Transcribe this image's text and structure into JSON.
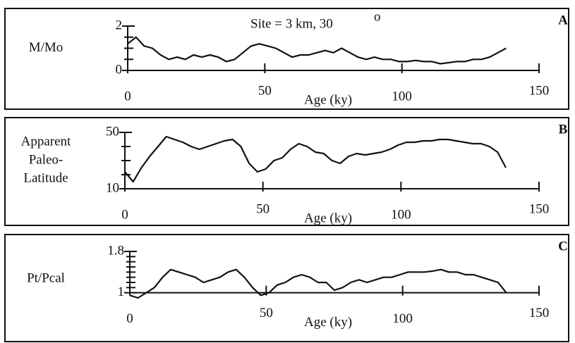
{
  "chart_data": [
    {
      "type": "line",
      "title": "Site = 3 km, 30",
      "title_sup": "o",
      "panel": "A",
      "ylabel": [
        "M/Mo"
      ],
      "xlabel": "Age (ky)",
      "xlim": [
        0,
        150
      ],
      "xticks": [
        0,
        50,
        100,
        150
      ],
      "ylim": [
        0,
        2
      ],
      "yticks": [
        0,
        2
      ],
      "yminor": [
        0.5,
        1,
        1.5
      ],
      "color": "#111111",
      "x": [
        0,
        3,
        6,
        9,
        12,
        15,
        18,
        21,
        24,
        27,
        30,
        33,
        36,
        39,
        42,
        45,
        48,
        51,
        54,
        57,
        60,
        63,
        66,
        69,
        72,
        75,
        78,
        81,
        84,
        87,
        90,
        93,
        96,
        99,
        102,
        105,
        108,
        111,
        114,
        117,
        120,
        123,
        126,
        129,
        132,
        135,
        138
      ],
      "values": [
        1.2,
        1.5,
        1.1,
        1.0,
        0.7,
        0.5,
        0.6,
        0.5,
        0.7,
        0.6,
        0.7,
        0.6,
        0.4,
        0.5,
        0.8,
        1.1,
        1.2,
        1.1,
        1.0,
        0.8,
        0.6,
        0.7,
        0.7,
        0.8,
        0.9,
        0.8,
        1.0,
        0.8,
        0.6,
        0.5,
        0.6,
        0.5,
        0.5,
        0.4,
        0.4,
        0.45,
        0.4,
        0.4,
        0.3,
        0.35,
        0.4,
        0.4,
        0.5,
        0.5,
        0.6,
        0.8,
        1.0
      ]
    },
    {
      "type": "line",
      "panel": "B",
      "ylabel": [
        "Apparent",
        "Paleo-",
        "Latitude"
      ],
      "xlabel": "Age (ky)",
      "xlim": [
        0,
        150
      ],
      "xticks": [
        0,
        50,
        100,
        150
      ],
      "ylim": [
        10,
        50
      ],
      "yticks": [
        10,
        50
      ],
      "yminor": [
        20,
        30,
        40
      ],
      "color": "#111111",
      "x": [
        0,
        3,
        6,
        9,
        12,
        15,
        18,
        21,
        24,
        27,
        30,
        33,
        36,
        39,
        42,
        45,
        48,
        51,
        54,
        57,
        60,
        63,
        66,
        69,
        72,
        75,
        78,
        81,
        84,
        87,
        90,
        93,
        96,
        99,
        102,
        105,
        108,
        111,
        114,
        117,
        120,
        123,
        126,
        129,
        132,
        135,
        138
      ],
      "values": [
        22,
        15,
        25,
        33,
        40,
        47,
        45,
        43,
        40,
        38,
        40,
        42,
        44,
        45,
        40,
        28,
        22,
        24,
        30,
        32,
        38,
        42,
        40,
        36,
        35,
        30,
        28,
        33,
        35,
        34,
        35,
        36,
        38,
        41,
        43,
        43,
        44,
        44,
        45,
        45,
        44,
        43,
        42,
        42,
        40,
        36,
        25
      ]
    },
    {
      "type": "line",
      "panel": "C",
      "ylabel": [
        "Pt/Pcal"
      ],
      "xlabel": "Age (ky)",
      "xlim": [
        0,
        150
      ],
      "xticks": [
        0,
        50,
        100,
        150
      ],
      "ylim": [
        0.9,
        1.8
      ],
      "yticks": [
        1,
        1.8
      ],
      "yminor": [
        1.1,
        1.2,
        1.3,
        1.4,
        1.5,
        1.6,
        1.7
      ],
      "color": "#111111",
      "x": [
        0,
        3,
        6,
        9,
        12,
        15,
        18,
        21,
        24,
        27,
        30,
        33,
        36,
        39,
        42,
        45,
        48,
        51,
        54,
        57,
        60,
        63,
        66,
        69,
        72,
        75,
        78,
        81,
        84,
        87,
        90,
        93,
        96,
        99,
        102,
        105,
        108,
        111,
        114,
        117,
        120,
        123,
        126,
        129,
        132,
        135,
        138
      ],
      "values": [
        0.95,
        0.9,
        1.0,
        1.1,
        1.3,
        1.45,
        1.4,
        1.35,
        1.3,
        1.2,
        1.25,
        1.3,
        1.4,
        1.45,
        1.3,
        1.1,
        0.95,
        1.0,
        1.15,
        1.2,
        1.3,
        1.35,
        1.3,
        1.2,
        1.2,
        1.05,
        1.1,
        1.2,
        1.25,
        1.2,
        1.25,
        1.3,
        1.3,
        1.35,
        1.4,
        1.4,
        1.4,
        1.42,
        1.45,
        1.4,
        1.4,
        1.35,
        1.35,
        1.3,
        1.25,
        1.2,
        1.0
      ]
    }
  ]
}
